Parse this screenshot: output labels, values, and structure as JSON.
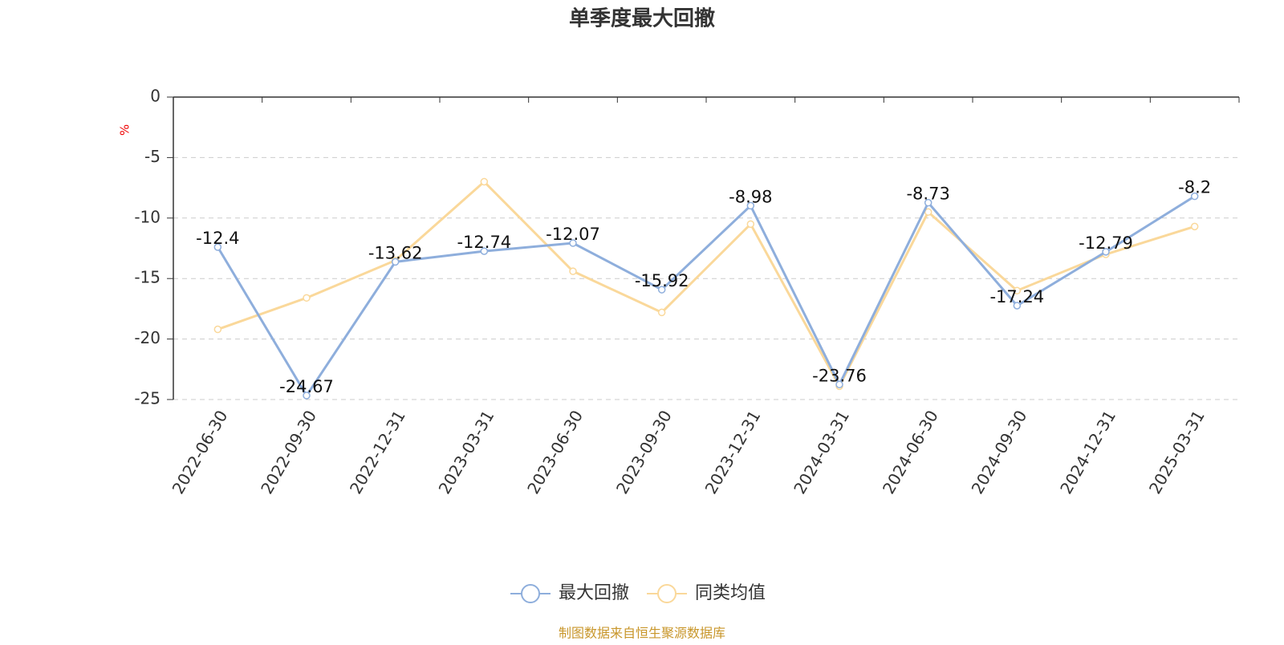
{
  "chart_data": {
    "type": "line",
    "title": "单季度最大回撤",
    "y_label": "%",
    "categories": [
      "2022-06-30",
      "2022-09-30",
      "2022-12-31",
      "2023-03-31",
      "2023-06-30",
      "2023-09-30",
      "2023-12-31",
      "2024-03-31",
      "2024-06-30",
      "2024-09-30",
      "2024-12-31",
      "2025-03-31"
    ],
    "series": [
      {
        "name": "最大回撤",
        "color": "#8eaedc",
        "values": [
          -12.4,
          -24.67,
          -13.62,
          -12.74,
          -12.07,
          -15.92,
          -8.98,
          -23.76,
          -8.73,
          -17.24,
          -12.79,
          -8.2
        ]
      },
      {
        "name": "同类均值",
        "color": "#fad89a",
        "values": [
          -19.2,
          -16.6,
          -13.5,
          -7.0,
          -14.4,
          -17.8,
          -10.5,
          -23.9,
          -9.5,
          -16.0,
          -13.0,
          -10.7
        ]
      }
    ],
    "ylim": [
      -25,
      0
    ],
    "yticks": [
      0,
      -5,
      -10,
      -15,
      -20,
      -25
    ],
    "grid": true,
    "source": "制图数据来自恒生聚源数据库"
  }
}
